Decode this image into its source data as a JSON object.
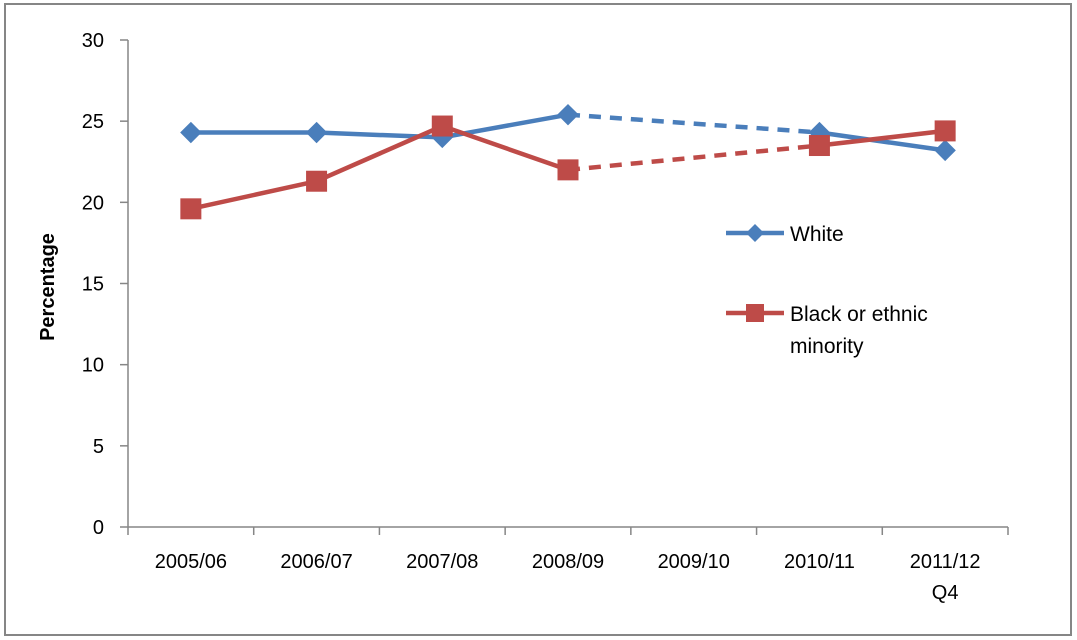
{
  "chart_data": {
    "type": "line",
    "title": "",
    "xlabel": "",
    "ylabel": "Percentage",
    "categories": [
      "2005/06",
      "2006/07",
      "2007/08",
      "2008/09",
      "2009/10",
      "2010/11",
      "2011/12 Q4"
    ],
    "ylim": [
      0,
      30
    ],
    "yticks": [
      0,
      5,
      10,
      15,
      20,
      25,
      30
    ],
    "grid": false,
    "legend_position": "right",
    "series": [
      {
        "name": "White",
        "color": "#4A7EBB",
        "marker": "diamond",
        "values": [
          24.3,
          24.3,
          24.0,
          25.4,
          null,
          24.3,
          23.2
        ],
        "dashed_gap": true
      },
      {
        "name": "Black or ethnic minority",
        "legend_lines": [
          "Black or ethnic",
          "minority"
        ],
        "color": "#BE4B48",
        "marker": "square",
        "values": [
          19.6,
          21.3,
          24.7,
          22.0,
          null,
          23.5,
          24.4
        ],
        "dashed_gap": true
      }
    ]
  }
}
